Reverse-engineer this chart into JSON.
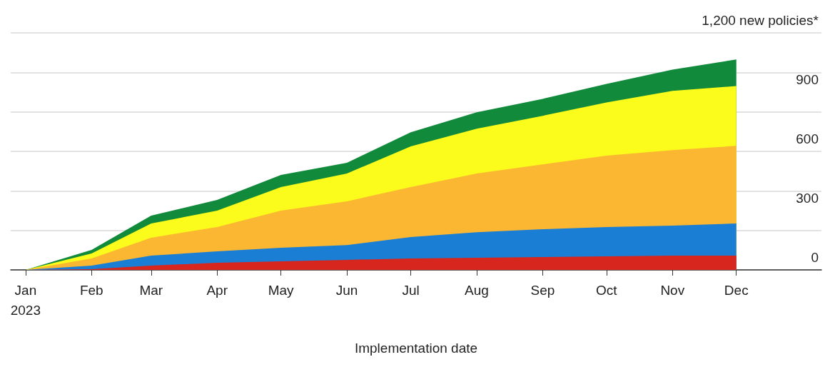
{
  "chart_data": {
    "type": "area",
    "stacked": true,
    "xlabel": "Implementation date",
    "x": [
      "2023-01-01",
      "2023-02-01",
      "2023-03-01",
      "2023-04-01",
      "2023-05-01",
      "2023-06-01",
      "2023-07-01",
      "2023-08-01",
      "2023-09-01",
      "2023-10-01",
      "2023-11-01",
      "2023-12-01"
    ],
    "series": [
      {
        "color": "#d7261e",
        "values": [
          0,
          4,
          22,
          36,
          43,
          51,
          58,
          61,
          65,
          69,
          72,
          72
        ]
      },
      {
        "color": "#1a7fd4",
        "values": [
          0,
          18,
          50,
          58,
          69,
          75,
          108,
          130,
          141,
          148,
          152,
          163
        ]
      },
      {
        "color": "#fbb632",
        "values": [
          0,
          36,
          91,
          123,
          188,
          221,
          253,
          297,
          328,
          361,
          382,
          393
        ]
      },
      {
        "color": "#fbfb1c",
        "values": [
          0,
          25,
          72,
          83,
          119,
          141,
          206,
          227,
          246,
          270,
          300,
          303
        ]
      },
      {
        "color": "#118a3b",
        "values": [
          0,
          18,
          40,
          54,
          62,
          54,
          72,
          83,
          86,
          94,
          108,
          134
        ]
      }
    ],
    "xlim": [
      "2022-12-25",
      "2024-01-10"
    ],
    "xticks": [
      {
        "value": "2023-01-01",
        "label": "Jan\n2023"
      },
      {
        "value": "2023-02-01",
        "label": "Feb"
      },
      {
        "value": "2023-03-01",
        "label": "Mar"
      },
      {
        "value": "2023-04-01",
        "label": "Apr"
      },
      {
        "value": "2023-05-01",
        "label": "May"
      },
      {
        "value": "2023-06-01",
        "label": "Jun"
      },
      {
        "value": "2023-07-01",
        "label": "Jul"
      },
      {
        "value": "2023-08-01",
        "label": "Aug"
      },
      {
        "value": "2023-09-01",
        "label": "Sep"
      },
      {
        "value": "2023-10-01",
        "label": "Oct"
      },
      {
        "value": "2023-11-01",
        "label": "Nov"
      },
      {
        "value": "2023-12-01",
        "label": "Dec"
      }
    ],
    "ylim": [
      0,
      1200
    ],
    "yticks": [
      0,
      300,
      600,
      900,
      {
        "value": 1200,
        "label": "1,200 new policies*"
      }
    ],
    "grid": "y"
  }
}
